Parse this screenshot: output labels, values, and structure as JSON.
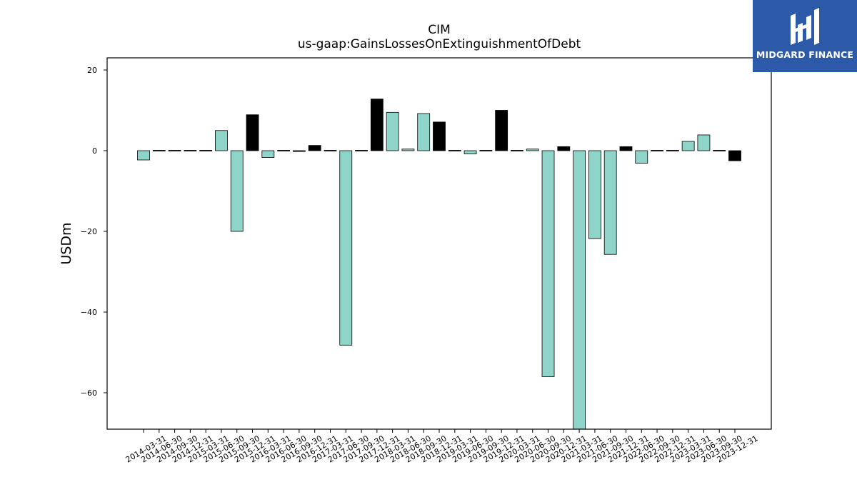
{
  "chart_data": {
    "type": "bar",
    "title": "CIM",
    "subtitle": "us-gaap:GainsLossesOnExtinguishmentOfDebt",
    "xlabel": "",
    "ylabel": "USDm",
    "ylim": [
      -69,
      23
    ],
    "yticks": [
      20,
      0,
      -20,
      -40,
      -60
    ],
    "grid": false,
    "categories": [
      "2014-03-31",
      "2014-06-30",
      "2014-09-30",
      "2014-12-31",
      "2015-03-31",
      "2015-06-30",
      "2015-09-30",
      "2015-12-31",
      "2016-03-31",
      "2016-06-30",
      "2016-09-30",
      "2016-12-31",
      "2017-03-31",
      "2017-06-30",
      "2017-09-30",
      "2017-12-31",
      "2018-03-31",
      "2018-06-30",
      "2018-09-30",
      "2018-12-31",
      "2019-03-31",
      "2019-06-30",
      "2019-09-30",
      "2019-12-31",
      "2020-03-31",
      "2020-06-30",
      "2020-09-30",
      "2020-12-31",
      "2021-03-31",
      "2021-06-30",
      "2021-09-30",
      "2021-12-31",
      "2022-06-30",
      "2022-09-30",
      "2022-12-31",
      "2023-03-31",
      "2023-06-30",
      "2023-09-30",
      "2023-12-31"
    ],
    "values": [
      -2.3,
      0,
      0,
      0,
      0,
      5.0,
      -20.0,
      8.9,
      -1.7,
      0,
      -0.2,
      1.3,
      0,
      -48.2,
      0,
      12.8,
      9.5,
      0.4,
      9.2,
      7.1,
      0,
      -0.8,
      0,
      10.0,
      0,
      0.4,
      -56.0,
      1.0,
      -69.0,
      -21.8,
      -25.7,
      1.0,
      -3.1,
      0,
      0,
      2.3,
      3.9,
      0,
      -2.5
    ],
    "bar_colors": [
      "#8fd4c8",
      "#000000",
      "#000000",
      "#000000",
      "#000000",
      "#8fd4c8",
      "#8fd4c8",
      "#000000",
      "#8fd4c8",
      "#000000",
      "#000000",
      "#000000",
      "#000000",
      "#8fd4c8",
      "#000000",
      "#000000",
      "#8fd4c8",
      "#8fd4c8",
      "#8fd4c8",
      "#000000",
      "#000000",
      "#8fd4c8",
      "#000000",
      "#000000",
      "#000000",
      "#8fd4c8",
      "#8fd4c8",
      "#000000",
      "#8fd4c8",
      "#8fd4c8",
      "#8fd4c8",
      "#000000",
      "#8fd4c8",
      "#000000",
      "#000000",
      "#8fd4c8",
      "#8fd4c8",
      "#000000",
      "#000000"
    ],
    "colors": {
      "positive_bar": "#8fd4c8",
      "highlight_bar": "#000000",
      "axis": "#000000"
    }
  },
  "branding": {
    "company": "MIDGARD FINANCE",
    "logo_color": "#2c5aa8"
  }
}
